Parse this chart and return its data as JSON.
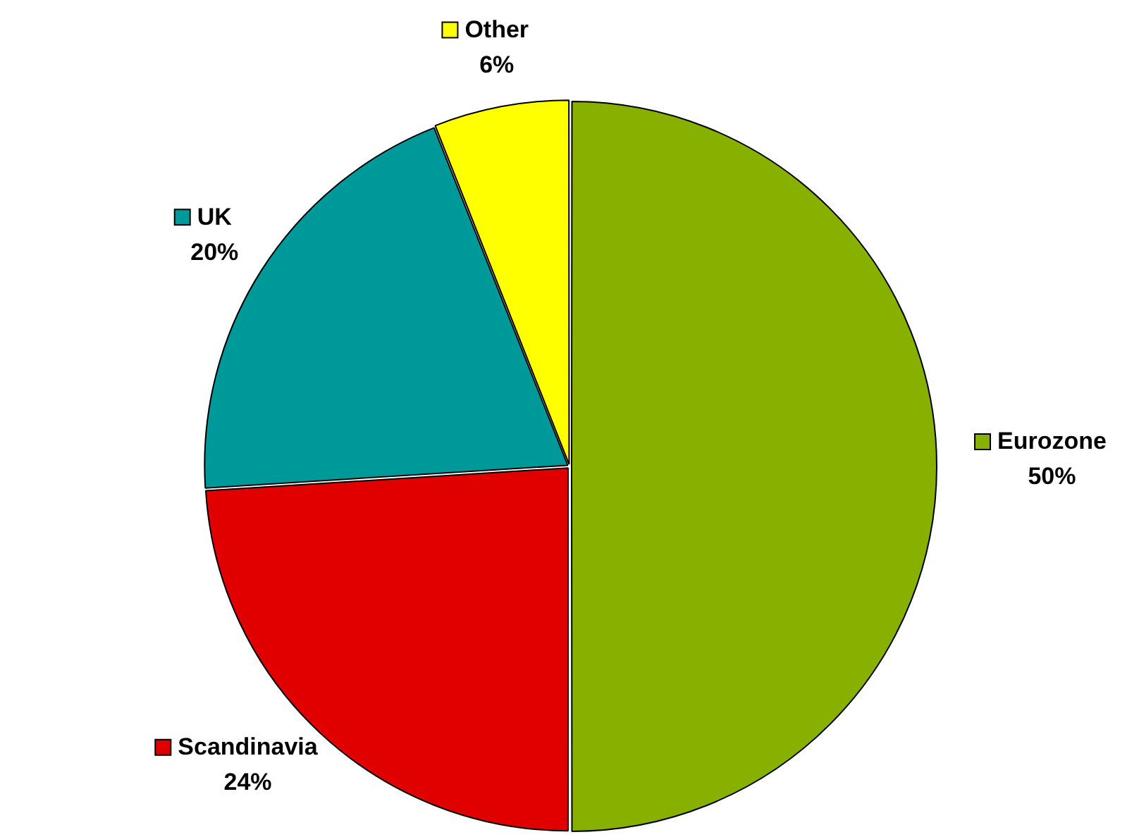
{
  "chart_data": {
    "type": "pie",
    "categories": [
      "Eurozone",
      "Scandinavia",
      "UK",
      "Other"
    ],
    "values": [
      50,
      24,
      20,
      6
    ],
    "value_labels": [
      "50%",
      "24%",
      "20%",
      "6%"
    ],
    "colors": [
      "#88b000",
      "#e00000",
      "#009999",
      "#ffff00"
    ],
    "legend": "right"
  }
}
